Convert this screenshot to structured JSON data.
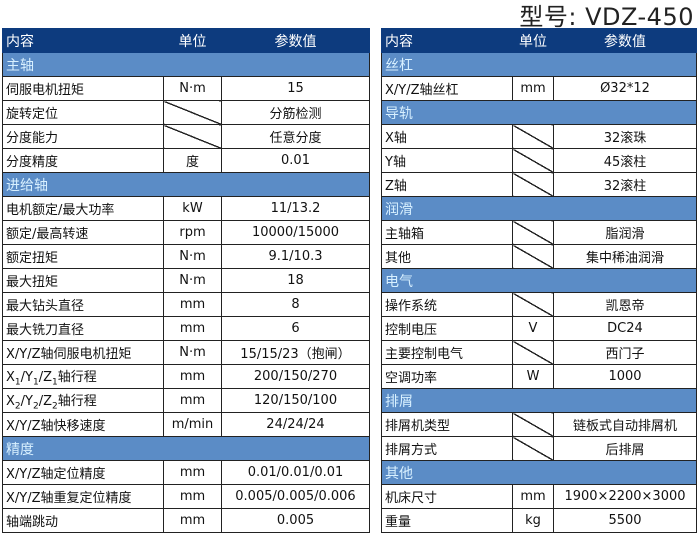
{
  "title": "型号: VDZ-450",
  "header": {
    "content": "内容",
    "unit": "单位",
    "value": "参数值"
  },
  "left": [
    {
      "section": "主轴"
    },
    {
      "name": "伺服电机扭矩",
      "unit": "N·m",
      "value": "15"
    },
    {
      "name": "旋转定位",
      "unit": "",
      "value": "分筋检测"
    },
    {
      "name": "分度能力",
      "unit": "",
      "value": "任意分度"
    },
    {
      "name": "分度精度",
      "unit": "度",
      "value": "0.01"
    },
    {
      "section": "进给轴"
    },
    {
      "name": "电机额定/最大功率",
      "unit": "kW",
      "value": "11/13.2"
    },
    {
      "name": "额定/最高转速",
      "unit": "rpm",
      "value": "10000/15000"
    },
    {
      "name": "额定扭矩",
      "unit": "N·m",
      "value": "9.1/10.3"
    },
    {
      "name": "最大扭矩",
      "unit": "N·m",
      "value": "18"
    },
    {
      "name": "最大钻头直径",
      "unit": "mm",
      "value": "8"
    },
    {
      "name": "最大铣刀直径",
      "unit": "mm",
      "value": "6"
    },
    {
      "name": "X/Y/Z轴伺服电机扭矩",
      "unit": "N·m",
      "value": "15/15/23（抱闸）"
    },
    {
      "name": "X1/Y1/Z1轴行程",
      "unit": "mm",
      "value": "200/150/270"
    },
    {
      "name": "X2/Y2/Z2轴行程",
      "unit": "mm",
      "value": "120/150/100"
    },
    {
      "name": "X/Y/Z轴快移速度",
      "unit": "m/min",
      "value": "24/24/24"
    },
    {
      "section": "精度"
    },
    {
      "name": "X/Y/Z轴定位精度",
      "unit": "mm",
      "value": "0.01/0.01/0.01"
    },
    {
      "name": "X/Y/Z轴重复定位精度",
      "unit": "mm",
      "value": "0.005/0.005/0.006"
    },
    {
      "name": "轴端跳动",
      "unit": "mm",
      "value": "0.005"
    }
  ],
  "right": [
    {
      "section": "丝杠"
    },
    {
      "name": "X/Y/Z轴丝杠",
      "unit": "mm",
      "value": "Ø32*12"
    },
    {
      "section": "导轨"
    },
    {
      "name": "X轴",
      "unit": "",
      "value": "32滚珠"
    },
    {
      "name": "Y轴",
      "unit": "",
      "value": "45滚柱"
    },
    {
      "name": "Z轴",
      "unit": "",
      "value": "32滚柱"
    },
    {
      "section": "润滑"
    },
    {
      "name": "主轴箱",
      "unit": "",
      "value": "脂润滑"
    },
    {
      "name": "其他",
      "unit": "",
      "value": "集中稀油润滑"
    },
    {
      "section": "电气"
    },
    {
      "name": "操作系统",
      "unit": "",
      "value": "凯恩帝"
    },
    {
      "name": "控制电压",
      "unit": "V",
      "value": "DC24"
    },
    {
      "name": "主要控制电气",
      "unit": "",
      "value": "西门子"
    },
    {
      "name": "空调功率",
      "unit": "W",
      "value": "1000"
    },
    {
      "section": "排屑"
    },
    {
      "name": "排屑机类型",
      "unit": "",
      "value": "链板式自动排屑机"
    },
    {
      "name": "排屑方式",
      "unit": "",
      "value": "后排屑"
    },
    {
      "section": "其他"
    },
    {
      "name": "机床尺寸",
      "unit": "mm",
      "value": "1900×2200×3000"
    },
    {
      "name": "重量",
      "unit": "kg",
      "value": "5500"
    }
  ]
}
